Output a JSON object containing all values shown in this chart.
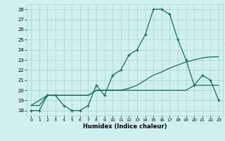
{
  "xlabel": "Humidex (Indice chaleur)",
  "xlim": [
    -0.5,
    23.5
  ],
  "ylim": [
    17.5,
    28.5
  ],
  "yticks": [
    18,
    19,
    20,
    21,
    22,
    23,
    24,
    25,
    26,
    27,
    28
  ],
  "xticks": [
    0,
    1,
    2,
    3,
    4,
    5,
    6,
    7,
    8,
    9,
    10,
    11,
    12,
    13,
    14,
    15,
    16,
    17,
    18,
    19,
    20,
    21,
    22,
    23
  ],
  "bg_color": "#cff0ee",
  "grid_color": "#aad8d4",
  "line_color": "#1a6b5a",
  "line1_x": [
    0,
    1,
    2,
    3,
    4,
    5,
    6,
    7,
    8,
    9,
    10,
    11,
    12,
    13,
    14,
    15,
    16,
    17,
    18,
    19,
    20,
    21,
    22,
    23
  ],
  "line1_y": [
    18.0,
    18.0,
    19.5,
    19.5,
    18.5,
    18.0,
    18.0,
    18.5,
    20.5,
    19.5,
    21.5,
    22.0,
    23.5,
    24.0,
    25.5,
    28.0,
    28.0,
    27.5,
    25.0,
    23.0,
    20.5,
    21.5,
    21.0,
    19.0
  ],
  "line2_x": [
    0,
    2,
    3,
    5,
    6,
    7,
    8,
    9,
    10,
    11,
    12,
    13,
    14,
    15,
    16,
    17,
    18,
    19,
    20,
    21,
    22,
    23
  ],
  "line2_y": [
    18.5,
    19.5,
    19.5,
    19.5,
    19.5,
    19.5,
    20.0,
    20.0,
    20.0,
    20.0,
    20.2,
    20.5,
    21.0,
    21.5,
    21.8,
    22.2,
    22.5,
    22.8,
    23.0,
    23.2,
    23.3,
    23.3
  ],
  "line3_x": [
    0,
    1,
    2,
    3,
    4,
    5,
    6,
    7,
    8,
    9,
    10,
    11,
    12,
    13,
    14,
    15,
    16,
    17,
    18,
    19,
    20,
    21,
    22,
    23
  ],
  "line3_y": [
    18.5,
    18.5,
    19.5,
    19.5,
    19.5,
    19.5,
    19.5,
    19.5,
    20.0,
    20.0,
    20.0,
    20.0,
    20.0,
    20.0,
    20.0,
    20.0,
    20.0,
    20.0,
    20.0,
    20.0,
    20.5,
    20.5,
    20.5,
    20.5
  ]
}
